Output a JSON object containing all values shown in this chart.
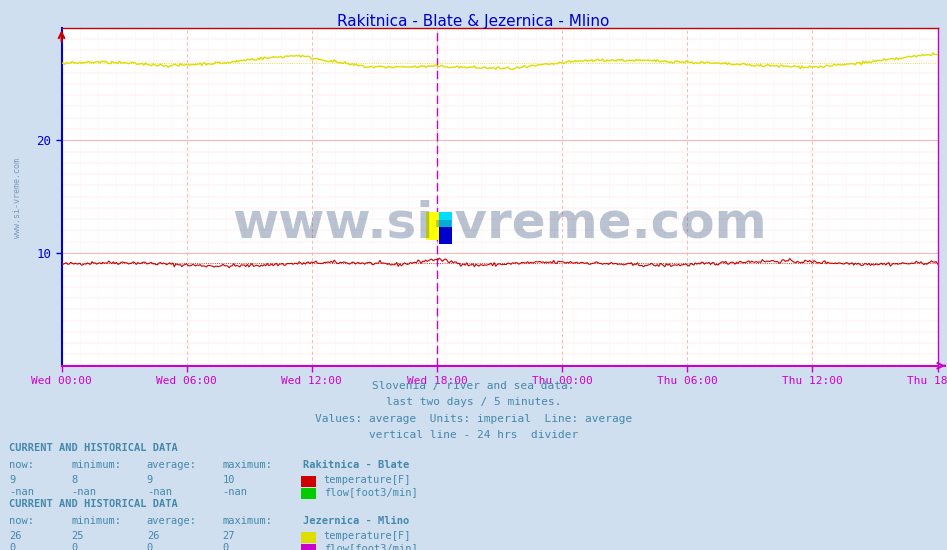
{
  "title": "Rakitnica - Blate & Jezernica - Mlino",
  "title_color": "#0000cc",
  "bg_color": "#d0dff0",
  "plot_bg_color": "#ffffff",
  "grid_color_major": "#ffaaaa",
  "grid_color_minor": "#ffdddd",
  "axis_color_left": "#0000dd",
  "axis_color_bottom": "#cc00cc",
  "axis_color_top": "#cc0000",
  "axis_color_right": "#cc00cc",
  "ytick_color": "#000066",
  "xtick_color": "#0000aa",
  "ylim": [
    0,
    30
  ],
  "xlim": [
    0,
    1
  ],
  "num_points": 576,
  "x_tick_labels": [
    "Wed 00:00",
    "Wed 06:00",
    "Wed 12:00",
    "Wed 18:00",
    "Thu 00:00",
    "Thu 06:00",
    "Thu 12:00",
    "Thu 18:00"
  ],
  "subtitle_lines": [
    "Slovenia / river and sea data.",
    "last two days / 5 minutes.",
    "Values: average  Units: imperial  Line: average",
    "vertical line - 24 hrs  divider"
  ],
  "subtitle_color": "#4488aa",
  "watermark": "www.si-vreme.com",
  "watermark_color": "#1a3a6a",
  "watermark_alpha": 0.3,
  "left_watermark": "www.si-vreme.com",
  "left_watermark_color": "#6688aa",
  "legend_section1_title": "CURRENT AND HISTORICAL DATA",
  "legend_section1_station": "Rakitnica - Blate",
  "legend_section1_headers": [
    "now:",
    "minimum:",
    "average:",
    "maximum:"
  ],
  "legend_section1_temp": [
    "9",
    "8",
    "9",
    "10"
  ],
  "legend_section1_flow": [
    "-nan",
    "-nan",
    "-nan",
    "-nan"
  ],
  "legend_section1_temp_color": "#cc0000",
  "legend_section1_flow_color": "#00cc00",
  "legend_section2_title": "CURRENT AND HISTORICAL DATA",
  "legend_section2_station": "Jezernica - Mlino",
  "legend_section2_headers": [
    "now:",
    "minimum:",
    "average:",
    "maximum:"
  ],
  "legend_section2_temp": [
    "26",
    "25",
    "26",
    "27"
  ],
  "legend_section2_flow": [
    "0",
    "0",
    "0",
    "0"
  ],
  "legend_section2_temp_color": "#dddd00",
  "legend_section2_flow_color": "#cc00cc",
  "divider_line_color": "#cc00cc",
  "temp_blate_color": "#cc0000",
  "temp_jezernica_color": "#dddd00",
  "avg_blate_color": "#cc0000",
  "avg_jezernica_color": "#dddd00",
  "temp_blate_base": 9.0,
  "temp_jezernica_base": 26.8
}
